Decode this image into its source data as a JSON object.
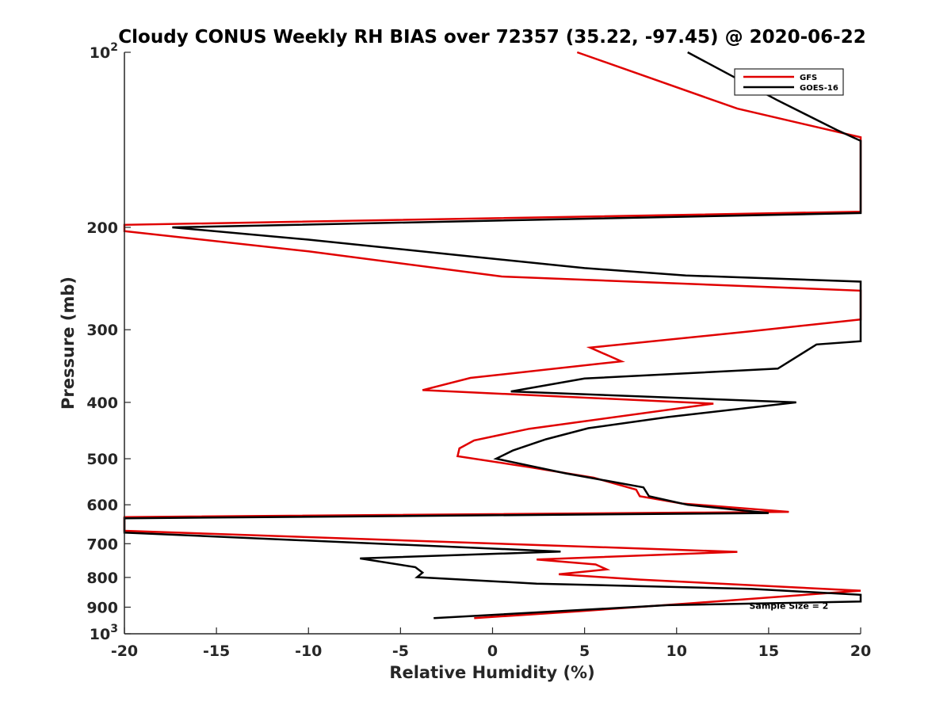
{
  "chart_data": {
    "type": "line",
    "title": "Cloudy CONUS Weekly RH BIAS over 72357 (35.22, -97.45) @ 2020-06-22",
    "xlabel": "Relative Humidity (%)",
    "ylabel": "Pressure (mb)",
    "xlim": [
      -20,
      20
    ],
    "ylim": [
      100,
      1000
    ],
    "yscale": "log",
    "y_reversed": true,
    "grid": false,
    "legend_position": "top-right",
    "x_ticks": [
      -20,
      -15,
      -10,
      -5,
      0,
      5,
      10,
      15,
      20
    ],
    "x_tick_labels": [
      "-20",
      "-15",
      "-10",
      "-5",
      "0",
      "5",
      "10",
      "15",
      "20"
    ],
    "y_ticks": [
      100,
      200,
      300,
      400,
      500,
      600,
      700,
      800,
      900,
      1000
    ],
    "y_tick_labels": [
      {
        "base": "10",
        "sup": "2"
      },
      {
        "base": "200",
        "sup": ""
      },
      {
        "base": "300",
        "sup": ""
      },
      {
        "base": "400",
        "sup": ""
      },
      {
        "base": "500",
        "sup": ""
      },
      {
        "base": "600",
        "sup": ""
      },
      {
        "base": "700",
        "sup": ""
      },
      {
        "base": "800",
        "sup": ""
      },
      {
        "base": "900",
        "sup": ""
      },
      {
        "base": "10",
        "sup": "3"
      }
    ],
    "series": [
      {
        "name": "GFS",
        "color": "#e00000",
        "points": [
          [
            4.6,
            100
          ],
          [
            13.3,
            125
          ],
          [
            20.0,
            140
          ],
          [
            20.0,
            188
          ],
          [
            -20.0,
            198
          ],
          [
            -20.0,
            203
          ],
          [
            -10.0,
            220
          ],
          [
            0.5,
            243
          ],
          [
            20.0,
            257
          ],
          [
            20.0,
            288
          ],
          [
            14.0,
            302
          ],
          [
            5.3,
            322
          ],
          [
            7.0,
            340
          ],
          [
            -1.2,
            363
          ],
          [
            -3.8,
            381
          ],
          [
            12.0,
            402
          ],
          [
            2.0,
            444
          ],
          [
            -1.0,
            465
          ],
          [
            -1.8,
            480
          ],
          [
            -1.9,
            495
          ],
          [
            2.0,
            517
          ],
          [
            5.5,
            539
          ],
          [
            7.8,
            565
          ],
          [
            8.0,
            580
          ],
          [
            10.3,
            597
          ],
          [
            16.1,
            617
          ],
          [
            -20.0,
            630
          ],
          [
            -20.0,
            665
          ],
          [
            13.3,
            723
          ],
          [
            2.4,
            745
          ],
          [
            5.6,
            760
          ],
          [
            6.2,
            775
          ],
          [
            3.6,
            790
          ],
          [
            8.0,
            807
          ],
          [
            20.0,
            843
          ],
          [
            11.0,
            885
          ],
          [
            4.6,
            915
          ],
          [
            -1.0,
            940
          ]
        ]
      },
      {
        "name": "GOES-16",
        "color": "#000000",
        "points": [
          [
            10.6,
            100
          ],
          [
            15.5,
            121
          ],
          [
            18.7,
            136
          ],
          [
            20.0,
            142
          ],
          [
            20.0,
            189
          ],
          [
            -17.4,
            200
          ],
          [
            -10.0,
            210
          ],
          [
            -2.0,
            223
          ],
          [
            5.0,
            235
          ],
          [
            10.5,
            242
          ],
          [
            20.0,
            248
          ],
          [
            20.0,
            314
          ],
          [
            17.6,
            318
          ],
          [
            15.5,
            350
          ],
          [
            5.0,
            364
          ],
          [
            1.0,
            383
          ],
          [
            16.5,
            400
          ],
          [
            9.5,
            424
          ],
          [
            5.2,
            443
          ],
          [
            2.9,
            463
          ],
          [
            1.1,
            484
          ],
          [
            0.2,
            500
          ],
          [
            4.0,
            530
          ],
          [
            8.2,
            560
          ],
          [
            8.5,
            580
          ],
          [
            10.6,
            600
          ],
          [
            15.0,
            620
          ],
          [
            -20.0,
            633
          ],
          [
            -20.0,
            670
          ],
          [
            3.7,
            722
          ],
          [
            -7.2,
            742
          ],
          [
            -4.2,
            768
          ],
          [
            -3.8,
            785
          ],
          [
            -4.1,
            799
          ],
          [
            2.4,
            820
          ],
          [
            14.0,
            837
          ],
          [
            20.0,
            857
          ],
          [
            20.0,
            880
          ],
          [
            9.5,
            893
          ],
          [
            -3.2,
            940
          ]
        ]
      }
    ],
    "annotations": [
      {
        "text": "Sample Size = 2",
        "x": 16.1,
        "y": 895
      }
    ]
  }
}
